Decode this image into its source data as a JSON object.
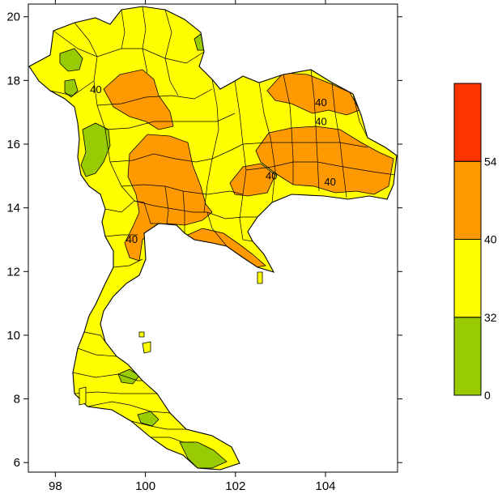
{
  "chart_data": {
    "type": "filled-contour-map",
    "title": "",
    "xlabel": "",
    "ylabel": "",
    "xlim": [
      97.4,
      105.6
    ],
    "ylim": [
      5.7,
      20.4
    ],
    "x_ticks": [
      "98",
      "100",
      "102",
      "104"
    ],
    "x_tick_values": [
      98,
      100,
      102,
      104
    ],
    "y_ticks": [
      "6",
      "8",
      "10",
      "12",
      "14",
      "16",
      "18",
      "20"
    ],
    "y_tick_values": [
      6,
      8,
      10,
      12,
      14,
      16,
      18,
      20
    ],
    "grid": false,
    "contour_levels": [
      0,
      32,
      40,
      54
    ],
    "contour_labels": [
      {
        "text": "40",
        "lon": 98.9,
        "lat": 17.6
      },
      {
        "text": "40",
        "lon": 103.9,
        "lat": 17.2
      },
      {
        "text": "40",
        "lon": 103.9,
        "lat": 16.6
      },
      {
        "text": "40",
        "lon": 102.8,
        "lat": 14.9
      },
      {
        "text": "40",
        "lon": 104.1,
        "lat": 14.7
      },
      {
        "text": "40",
        "lon": 99.7,
        "lat": 12.9
      }
    ],
    "colorbar": {
      "placement": "right",
      "bins": [
        {
          "from": 0,
          "to": 32,
          "color": "#99cc00"
        },
        {
          "from": 32,
          "to": 40,
          "color": "#ffff00"
        },
        {
          "from": 40,
          "to": 54,
          "color": "#ff9900"
        },
        {
          "from": 54,
          "to": 70,
          "color": "#ff3300"
        }
      ],
      "tick_labels": [
        "0",
        "32",
        "40",
        "54"
      ]
    }
  }
}
